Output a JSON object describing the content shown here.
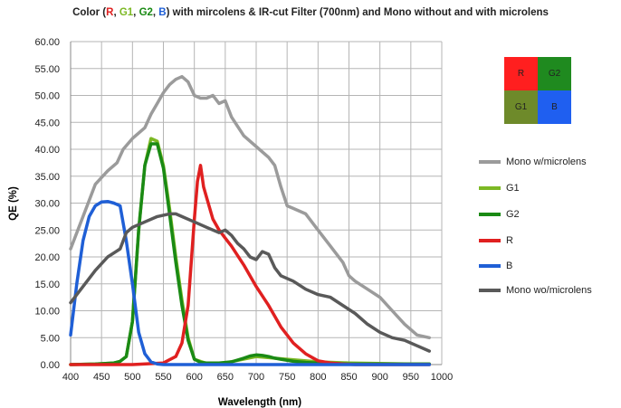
{
  "chart_data": {
    "type": "line",
    "title": {
      "prefix": "Color (",
      "r": "R",
      "sep1": ", ",
      "g1": "G1",
      "sep2": ", ",
      "g2": "G2",
      "sep3": ", ",
      "b": "B",
      "suffix": ")  with mircolens & IR-cut Filter (700nm) and Mono without and with microlens"
    },
    "xlabel": "Wavelength (nm)",
    "ylabel": "QE (%)",
    "xlim": [
      400,
      1000
    ],
    "ylim": [
      0,
      60
    ],
    "xticks": [
      400,
      450,
      500,
      550,
      600,
      650,
      700,
      750,
      800,
      850,
      900,
      950,
      1000
    ],
    "yticks": [
      "0.00",
      "5.00",
      "10.00",
      "15.00",
      "20.00",
      "25.00",
      "30.00",
      "35.00",
      "40.00",
      "45.00",
      "50.00",
      "55.00",
      "60.00"
    ],
    "grid": true,
    "legend_position": "right",
    "series": [
      {
        "name": "Mono w/microlens",
        "color": "#9b9b9b",
        "x": [
          400,
          420,
          440,
          460,
          475,
          485,
          500,
          520,
          530,
          540,
          550,
          560,
          570,
          580,
          590,
          600,
          610,
          620,
          630,
          640,
          650,
          660,
          680,
          700,
          720,
          730,
          740,
          750,
          760,
          780,
          800,
          820,
          840,
          850,
          860,
          880,
          900,
          920,
          940,
          960,
          980
        ],
        "y": [
          21.5,
          27.5,
          33.5,
          36,
          37.5,
          40,
          42,
          44,
          46.5,
          48.5,
          50.5,
          52,
          53,
          53.5,
          52.5,
          50,
          49.5,
          49.5,
          50,
          48.5,
          49,
          46,
          42.5,
          40.5,
          38.5,
          37,
          33,
          29.5,
          29,
          28,
          25,
          22,
          19,
          16.5,
          15.5,
          14,
          12.5,
          10,
          7.5,
          5.5,
          5
        ]
      },
      {
        "name": "G1",
        "color": "#7cb824",
        "x": [
          400,
          440,
          470,
          480,
          490,
          500,
          510,
          520,
          530,
          540,
          550,
          560,
          570,
          580,
          590,
          600,
          620,
          650,
          700,
          750,
          800,
          850,
          900,
          950,
          980
        ],
        "y": [
          0,
          0.1,
          0.3,
          0.6,
          1.5,
          8,
          25,
          37,
          42,
          41.5,
          37,
          29,
          20,
          12,
          5,
          1,
          0.2,
          0.3,
          1.5,
          1,
          0.5,
          0.3,
          0.2,
          0.1,
          0.1
        ]
      },
      {
        "name": "G2",
        "color": "#1a8a14",
        "x": [
          400,
          440,
          470,
          480,
          490,
          500,
          510,
          520,
          530,
          540,
          550,
          560,
          570,
          580,
          590,
          600,
          610,
          620,
          640,
          660,
          680,
          690,
          700,
          710,
          720,
          730,
          740,
          760,
          780,
          800,
          820,
          850,
          900,
          950,
          980
        ],
        "y": [
          0,
          0.1,
          0.3,
          0.6,
          1.5,
          8,
          25,
          37,
          41,
          41,
          36.5,
          28,
          19,
          11,
          4.5,
          1,
          0.4,
          0.3,
          0.3,
          0.5,
          1.2,
          1.6,
          1.8,
          1.7,
          1.5,
          1.2,
          1,
          0.6,
          0.4,
          0.3,
          0.2,
          0.1,
          0.1,
          0.1,
          0.1
        ]
      },
      {
        "name": "R",
        "color": "#e02020",
        "x": [
          400,
          450,
          500,
          550,
          570,
          580,
          590,
          600,
          605,
          610,
          615,
          620,
          630,
          640,
          650,
          660,
          680,
          700,
          720,
          740,
          760,
          780,
          800,
          820,
          840,
          860,
          900,
          950,
          980
        ],
        "y": [
          0,
          0,
          0,
          0.3,
          1.5,
          4,
          11,
          27,
          34,
          37,
          33,
          31,
          27,
          25,
          23.5,
          22,
          18.5,
          14.5,
          11,
          7,
          4,
          2,
          0.7,
          0.3,
          0.1,
          0,
          0,
          0,
          0
        ]
      },
      {
        "name": "B",
        "color": "#1f5fd6",
        "x": [
          400,
          410,
          420,
          430,
          440,
          450,
          460,
          470,
          480,
          490,
          500,
          510,
          520,
          530,
          540,
          550,
          560,
          580,
          600,
          650,
          700,
          800,
          900,
          980
        ],
        "y": [
          5.5,
          15,
          23,
          27.5,
          29.5,
          30.2,
          30.3,
          30,
          29.5,
          23,
          15,
          6,
          2,
          0.5,
          0.1,
          0,
          0,
          0,
          0,
          0,
          0,
          0,
          0,
          0
        ]
      },
      {
        "name": "Mono wo/microlens",
        "color": "#595959",
        "x": [
          400,
          420,
          440,
          460,
          480,
          490,
          500,
          520,
          540,
          560,
          570,
          580,
          600,
          620,
          640,
          650,
          660,
          670,
          680,
          690,
          700,
          710,
          720,
          730,
          740,
          760,
          780,
          800,
          820,
          840,
          860,
          880,
          900,
          920,
          940,
          960,
          980
        ],
        "y": [
          11.5,
          14.5,
          17.5,
          20,
          21.5,
          24.5,
          25.5,
          26.5,
          27.5,
          28,
          28,
          27.5,
          26.5,
          25.5,
          24.5,
          25,
          24,
          22.5,
          21.5,
          20,
          19.5,
          21,
          20.5,
          18,
          16.5,
          15.5,
          14,
          13,
          12.5,
          11,
          9.5,
          7.5,
          6,
          5,
          4.5,
          3.5,
          2.5
        ]
      }
    ]
  },
  "legend": {
    "items": [
      {
        "label": "Mono w/microlens",
        "color": "#9b9b9b"
      },
      {
        "label": "G1",
        "color": "#7cb824"
      },
      {
        "label": "G2",
        "color": "#1a8a14"
      },
      {
        "label": "R",
        "color": "#e02020"
      },
      {
        "label": "B",
        "color": "#1f5fd6"
      },
      {
        "label": "Mono wo/microlens",
        "color": "#595959"
      }
    ]
  },
  "bayer": {
    "r_label": "R",
    "g2_label": "G2",
    "g1_label": "G1",
    "b_label": "B",
    "r_color": "#ff1f1f",
    "g2_color": "#1f8a1f",
    "g1_color": "#6e8a2a",
    "b_color": "#1f5ff0"
  },
  "colors": {
    "r": "#e02020",
    "g1": "#7cb824",
    "g2": "#1a8a14",
    "b": "#1f5fd6"
  }
}
